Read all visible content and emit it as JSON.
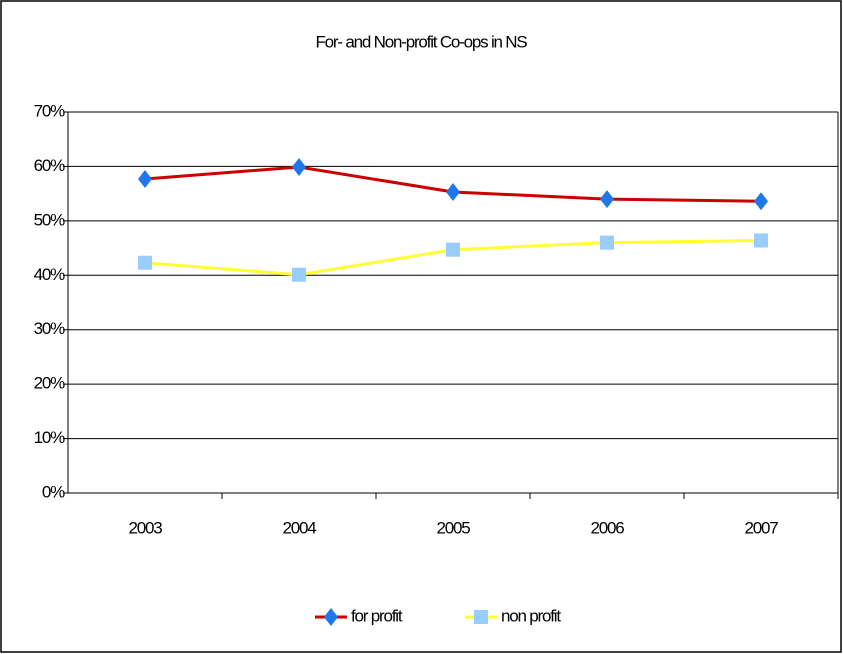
{
  "chart_data": {
    "type": "line",
    "title": "For- and Non-profit Co-ops in NS",
    "categories": [
      "2003",
      "2004",
      "2005",
      "2006",
      "2007"
    ],
    "series": [
      {
        "name": "for profit",
        "color": "#cc0000",
        "marker_color": "#1f77e8",
        "marker": "diamond",
        "values": [
          57.7,
          59.9,
          55.3,
          54.0,
          53.6
        ]
      },
      {
        "name": "non profit",
        "color": "#ffff33",
        "marker_color": "#99ccff",
        "marker": "square",
        "values": [
          42.3,
          40.1,
          44.7,
          46.0,
          46.4
        ]
      }
    ],
    "ylim": [
      0,
      70
    ],
    "yticks": [
      {
        "value": 0,
        "label": "0%"
      },
      {
        "value": 10,
        "label": "10%"
      },
      {
        "value": 20,
        "label": "20%"
      },
      {
        "value": 30,
        "label": "30%"
      },
      {
        "value": 40,
        "label": "40%"
      },
      {
        "value": 50,
        "label": "50%"
      },
      {
        "value": 60,
        "label": "60%"
      },
      {
        "value": 70,
        "label": "70%"
      }
    ],
    "grid": true,
    "legend": "bottom"
  }
}
